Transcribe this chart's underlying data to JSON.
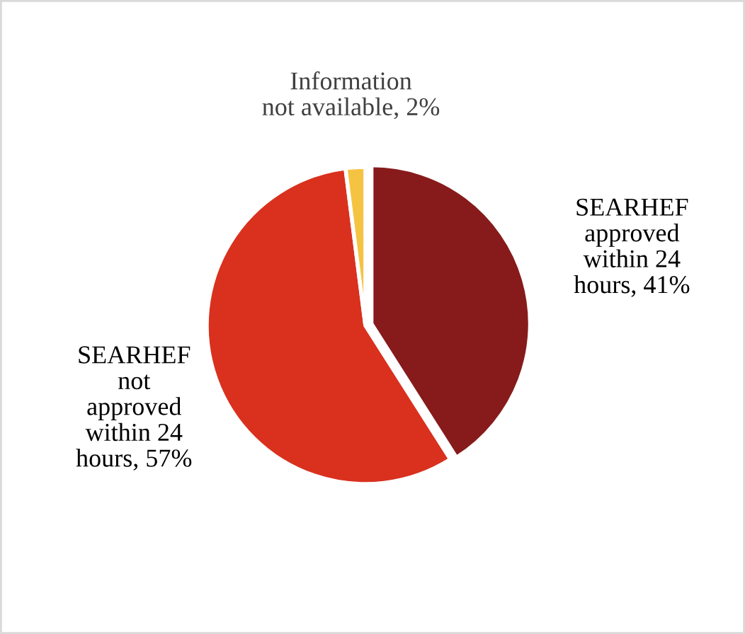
{
  "chart_data": {
    "type": "pie",
    "categories": [
      "SEARHEF\napproved\nwithin 24\nhours",
      "SEARHEF\nnot\napproved\nwithin 24\nhours",
      "Information\nnot available"
    ],
    "values": [
      41,
      57,
      2
    ],
    "colors": [
      "#871b1b",
      "#d9311e",
      "#f5c342"
    ],
    "value_labels": [
      "41%",
      "57%",
      "2%"
    ]
  }
}
